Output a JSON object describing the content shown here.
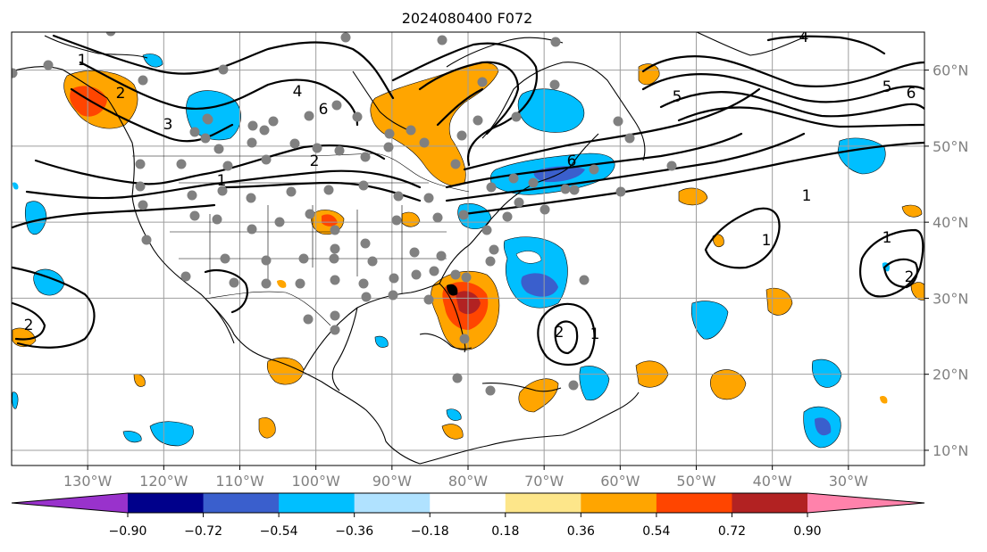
{
  "title": "2024080400 F072",
  "map": {
    "lon_range": [
      -140,
      -20
    ],
    "lat_range": [
      8,
      65
    ],
    "lon_labels": [
      "130°W",
      "120°W",
      "110°W",
      "100°W",
      "90°W",
      "80°W",
      "70°W",
      "60°W",
      "50°W",
      "40°W",
      "30°W"
    ],
    "lat_labels": [
      "60°N",
      "50°N",
      "40°N",
      "30°N",
      "20°N",
      "10°N"
    ]
  },
  "colorbar": {
    "ticks": [
      "−0.90",
      "−0.72",
      "−0.54",
      "−0.36",
      "−0.18",
      "0.18",
      "0.36",
      "0.54",
      "0.72",
      "0.90"
    ],
    "colors": [
      "#9932cc",
      "#00008b",
      "#3a5fcd",
      "#00bfff",
      "#b0e2ff",
      "#ffffff",
      "#fde68a",
      "#ffa500",
      "#ff4500",
      "#b22222",
      "#ff82ab"
    ]
  },
  "contour_labels": [
    "1",
    "2",
    "3",
    "4",
    "5",
    "6"
  ]
}
